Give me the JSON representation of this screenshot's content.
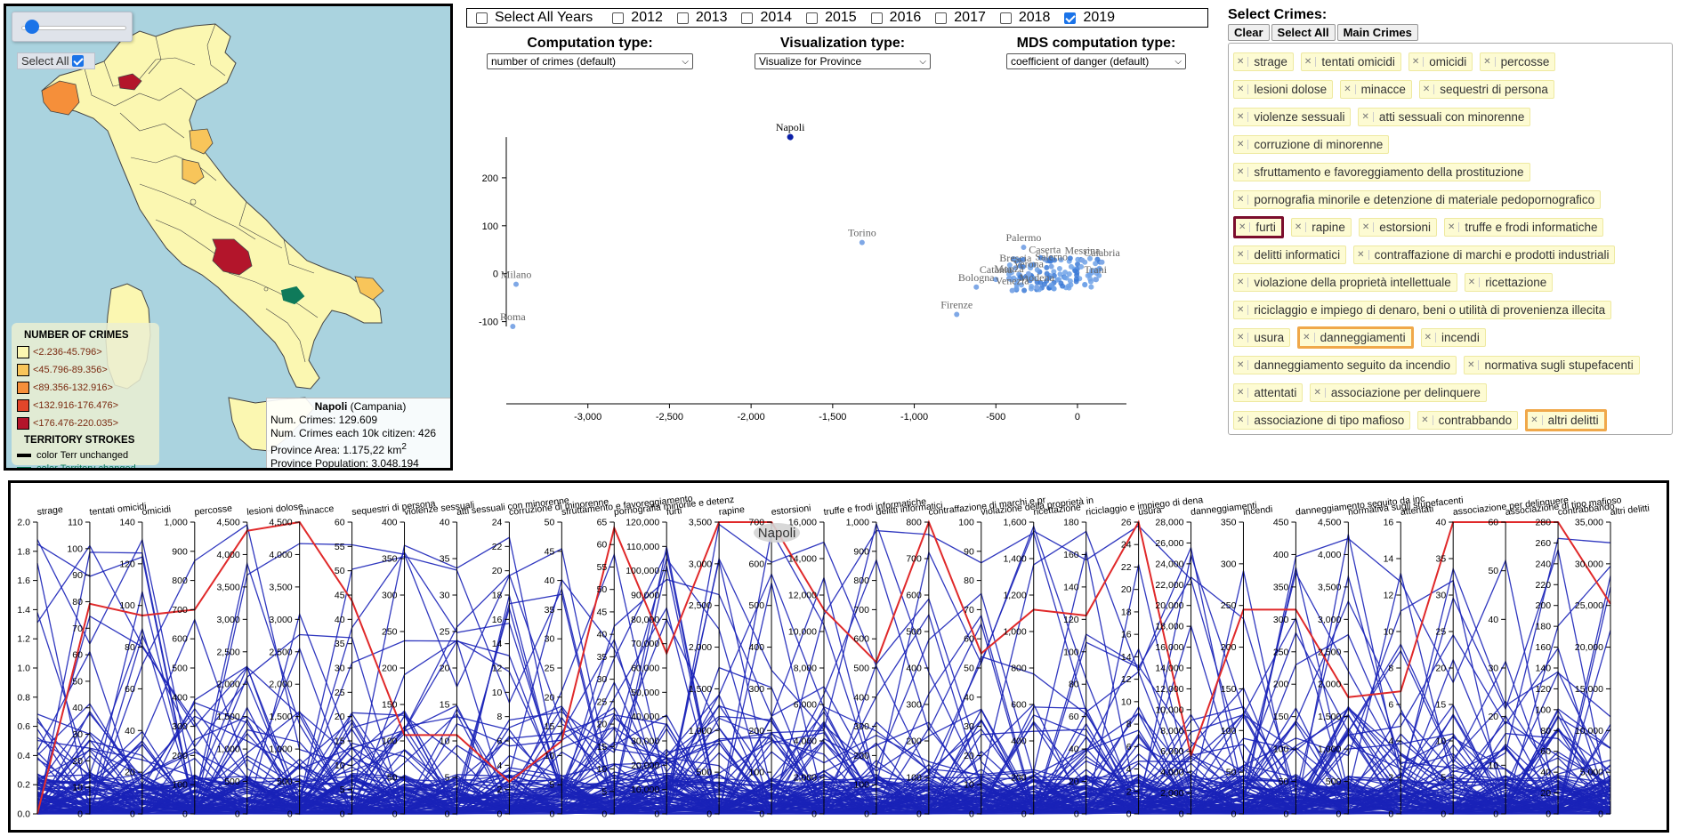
{
  "map": {
    "select_all_label": "Select All",
    "select_all_checked": true,
    "legend": {
      "title": "NUMBER OF CRIMES",
      "ranges": [
        {
          "label": "<2.236-45.796>",
          "color": "#fbf7b1"
        },
        {
          "label": "<45.796-89.356>",
          "color": "#f8c55a"
        },
        {
          "label": "<89.356-132.916>",
          "color": "#f58f3a"
        },
        {
          "label": "<132.916-176.476>",
          "color": "#e2462a"
        },
        {
          "label": "<176.476-220.035>",
          "color": "#b3152b"
        }
      ],
      "strokes_title": "TERRITORY STROKES",
      "strokes": [
        {
          "label": "color Terr unchanged",
          "color": "#000000"
        },
        {
          "label": "color Territory changed",
          "color": "#0f7a5a"
        }
      ]
    },
    "infobox": {
      "name": "Napoli",
      "region": "(Campania)",
      "num_crimes": "Num. Crimes: 129.609",
      "per_10k": "Num. Crimes each 10k citizen: 426",
      "area": "Province Area: 1.175,22 km",
      "area_sup": "2",
      "population": "Province Population: 3.048.194"
    }
  },
  "years": {
    "select_all_label": "Select All Years",
    "items": [
      {
        "label": "2012",
        "checked": false
      },
      {
        "label": "2013",
        "checked": false
      },
      {
        "label": "2014",
        "checked": false
      },
      {
        "label": "2015",
        "checked": false
      },
      {
        "label": "2016",
        "checked": false
      },
      {
        "label": "2017",
        "checked": false
      },
      {
        "label": "2018",
        "checked": false
      },
      {
        "label": "2019",
        "checked": true
      }
    ]
  },
  "dropdowns": {
    "computation": {
      "title": "Computation type:",
      "value": "number of crimes (default)"
    },
    "visualization": {
      "title": "Visualization type:",
      "value": "Visualize for Province"
    },
    "mds": {
      "title": "MDS computation type:",
      "value": "coefficient of danger (default)"
    }
  },
  "mds_chart": {
    "x_ticks": [
      "-3,000",
      "-2,500",
      "-2,000",
      "-1,500",
      "-1,000",
      "-500",
      "0"
    ],
    "y_ticks": [
      "200",
      "100",
      "0",
      "-100"
    ],
    "labeled_points": [
      {
        "name": "Napoli",
        "x": -1760,
        "y": 285,
        "highlight": true
      },
      {
        "name": "Torino",
        "x": -1320,
        "y": 65
      },
      {
        "name": "Milano",
        "x": -3440,
        "y": -22
      },
      {
        "name": "Roma",
        "x": -3460,
        "y": -110
      },
      {
        "name": "Firenze",
        "x": -740,
        "y": -85
      },
      {
        "name": "Palermo",
        "x": -330,
        "y": 55
      },
      {
        "name": "Bologna",
        "x": -620,
        "y": -28
      },
      {
        "name": "Brescia",
        "x": -380,
        "y": 12
      },
      {
        "name": "Caserta",
        "x": -200,
        "y": 30
      },
      {
        "name": "Messina",
        "x": 30,
        "y": 28
      },
      {
        "name": "Calabria",
        "x": 150,
        "y": 24
      },
      {
        "name": "Salerno",
        "x": -160,
        "y": 15
      },
      {
        "name": "Monza",
        "x": -420,
        "y": -10
      },
      {
        "name": "Catania",
        "x": -500,
        "y": -12
      },
      {
        "name": "Venezia",
        "x": -400,
        "y": -35
      },
      {
        "name": "Modena",
        "x": -250,
        "y": -28
      },
      {
        "name": "Verona",
        "x": -300,
        "y": 0
      },
      {
        "name": "Trani",
        "x": 110,
        "y": -12
      }
    ]
  },
  "crimes": {
    "title": "Select Crimes:",
    "buttons": [
      "Clear",
      "Select All",
      "Main Crimes"
    ],
    "rows": [
      [
        {
          "label": "strage"
        },
        {
          "label": "tentati omicidi"
        },
        {
          "label": "omicidi"
        },
        {
          "label": "percosse"
        }
      ],
      [
        {
          "label": "lesioni dolose"
        },
        {
          "label": "minacce"
        },
        {
          "label": "sequestri di persona"
        }
      ],
      [
        {
          "label": "violenze sessuali"
        },
        {
          "label": "atti sessuali con minorenne"
        }
      ],
      [
        {
          "label": "corruzione di minorenne"
        }
      ],
      [
        {
          "label": "sfruttamento e favoreggiamento della prostituzione"
        }
      ],
      [
        {
          "label": "pornografia minorile e detenzione di materiale pedopornografico"
        }
      ],
      [
        {
          "label": "furti",
          "style": "dark"
        },
        {
          "label": "rapine"
        },
        {
          "label": "estorsioni"
        },
        {
          "label": "truffe e frodi informatiche"
        }
      ],
      [
        {
          "label": "delitti informatici"
        },
        {
          "label": "contraffazione di marchi e prodotti industriali"
        }
      ],
      [
        {
          "label": "violazione della proprietà intellettuale"
        },
        {
          "label": "ricettazione"
        }
      ],
      [
        {
          "label": "riciclaggio e impiego di denaro, beni o utilità di provenienza illecita"
        }
      ],
      [
        {
          "label": "usura"
        },
        {
          "label": "danneggiamenti",
          "style": "orange"
        },
        {
          "label": "incendi"
        }
      ],
      [
        {
          "label": "danneggiamento seguito da incendio"
        },
        {
          "label": "normativa sugli stupefacenti"
        }
      ],
      [
        {
          "label": "attentati"
        },
        {
          "label": "associazione per delinquere"
        }
      ],
      [
        {
          "label": "associazione di tipo mafioso"
        },
        {
          "label": "contrabbando"
        },
        {
          "label": "altri delitti",
          "style": "orange"
        }
      ]
    ]
  },
  "parallel": {
    "hover_label": "Napoli",
    "axes": [
      {
        "name": "strage",
        "ticks": [
          "2.0",
          "1.8",
          "1.6",
          "1.4",
          "1.2",
          "1.0",
          "0.8",
          "0.6",
          "0.4",
          "0.2",
          "0.0"
        ]
      },
      {
        "name": "tentati omicidi",
        "ticks": [
          "110",
          "100",
          "90",
          "80",
          "70",
          "60",
          "50",
          "40",
          "30",
          "20",
          "10",
          "0"
        ]
      },
      {
        "name": "omicidi",
        "ticks": [
          "140",
          "120",
          "100",
          "80",
          "60",
          "40",
          "20",
          "0"
        ]
      },
      {
        "name": "percosse",
        "ticks": [
          "1,000",
          "900",
          "800",
          "700",
          "600",
          "500",
          "400",
          "300",
          "200",
          "100",
          "0"
        ]
      },
      {
        "name": "lesioni dolose",
        "ticks": [
          "4,500",
          "4,000",
          "3,500",
          "3,000",
          "2,500",
          "2,000",
          "1,500",
          "1,000",
          "500",
          "0"
        ]
      },
      {
        "name": "minacce",
        "ticks": [
          "4,500",
          "4,000",
          "3,500",
          "3,000",
          "2,500",
          "2,000",
          "1,500",
          "1,000",
          "500",
          "0"
        ]
      },
      {
        "name": "sequestri di persona",
        "ticks": [
          "60",
          "55",
          "50",
          "45",
          "40",
          "35",
          "30",
          "25",
          "20",
          "15",
          "10",
          "5",
          "0"
        ]
      },
      {
        "name": "violenze sessuali",
        "ticks": [
          "400",
          "350",
          "300",
          "250",
          "200",
          "150",
          "100",
          "50",
          "0"
        ]
      },
      {
        "name": "atti sessuali con minorenne",
        "ticks": [
          "40",
          "35",
          "30",
          "25",
          "20",
          "15",
          "10",
          "5",
          "0"
        ]
      },
      {
        "name": "corruzione di minorenne",
        "ticks": [
          "24",
          "22",
          "20",
          "18",
          "16",
          "14",
          "12",
          "10",
          "8",
          "6",
          "4",
          "2",
          "0"
        ]
      },
      {
        "name": "sfruttamento e favoreggiamento",
        "ticks": [
          "50",
          "45",
          "40",
          "35",
          "30",
          "25",
          "20",
          "15",
          "10",
          "5",
          "0"
        ]
      },
      {
        "name": "pornografia minorile e detenz",
        "ticks": [
          "65",
          "60",
          "55",
          "50",
          "45",
          "40",
          "35",
          "30",
          "25",
          "20",
          "15",
          "10",
          "5",
          "0"
        ]
      },
      {
        "name": "furti",
        "ticks": [
          "120,000",
          "110,000",
          "100,000",
          "90,000",
          "80,000",
          "70,000",
          "60,000",
          "50,000",
          "40,000",
          "30,000",
          "20,000",
          "10,000",
          "0"
        ]
      },
      {
        "name": "rapine",
        "ticks": [
          "3,500",
          "3,000",
          "2,500",
          "2,000",
          "1,500",
          "1,000",
          "500",
          "0"
        ]
      },
      {
        "name": "estorsioni",
        "ticks": [
          "700",
          "600",
          "500",
          "400",
          "300",
          "200",
          "100",
          "0"
        ]
      },
      {
        "name": "truffe e frodi informatiche",
        "ticks": [
          "16,000",
          "14,000",
          "12,000",
          "10,000",
          "8,000",
          "6,000",
          "4,000",
          "2,000",
          "0"
        ]
      },
      {
        "name": "delitti informatici",
        "ticks": [
          "1,000",
          "900",
          "800",
          "700",
          "600",
          "500",
          "400",
          "300",
          "200",
          "100",
          "0"
        ]
      },
      {
        "name": "contraffazione di marchi e pr",
        "ticks": [
          "800",
          "700",
          "600",
          "500",
          "400",
          "300",
          "200",
          "100",
          "0"
        ]
      },
      {
        "name": "violazione della proprietà in",
        "ticks": [
          "100",
          "90",
          "80",
          "70",
          "60",
          "50",
          "40",
          "30",
          "20",
          "10",
          "0"
        ]
      },
      {
        "name": "ricettazione",
        "ticks": [
          "1,600",
          "1,400",
          "1,200",
          "1,000",
          "800",
          "600",
          "400",
          "200",
          "0"
        ]
      },
      {
        "name": "riciclaggio e impiego di dena",
        "ticks": [
          "180",
          "160",
          "140",
          "120",
          "100",
          "80",
          "60",
          "40",
          "20",
          "0"
        ]
      },
      {
        "name": "usura",
        "ticks": [
          "26",
          "24",
          "22",
          "20",
          "18",
          "16",
          "14",
          "12",
          "10",
          "8",
          "6",
          "4",
          "2",
          "0"
        ]
      },
      {
        "name": "danneggiamenti",
        "ticks": [
          "28,000",
          "26,000",
          "24,000",
          "22,000",
          "20,000",
          "18,000",
          "16,000",
          "14,000",
          "12,000",
          "10,000",
          "8,000",
          "6,000",
          "4,000",
          "2,000",
          "0"
        ]
      },
      {
        "name": "incendi",
        "ticks": [
          "350",
          "300",
          "250",
          "200",
          "150",
          "100",
          "50",
          "0"
        ]
      },
      {
        "name": "danneggiamento seguito da inc",
        "ticks": [
          "450",
          "400",
          "350",
          "300",
          "250",
          "200",
          "150",
          "100",
          "50",
          "0"
        ]
      },
      {
        "name": "normativa sugli stupefacenti",
        "ticks": [
          "4,500",
          "4,000",
          "3,500",
          "3,000",
          "2,500",
          "2,000",
          "1,500",
          "1,000",
          "500",
          "0"
        ]
      },
      {
        "name": "attentati",
        "ticks": [
          "16",
          "14",
          "12",
          "10",
          "8",
          "6",
          "4",
          "2",
          "0"
        ]
      },
      {
        "name": "associazione per delinquere",
        "ticks": [
          "40",
          "35",
          "30",
          "25",
          "20",
          "15",
          "10",
          "5",
          "0"
        ]
      },
      {
        "name": "associazione di tipo mafioso",
        "ticks": [
          "60",
          "50",
          "40",
          "30",
          "20",
          "10",
          "0"
        ]
      },
      {
        "name": "contrabbando",
        "ticks": [
          "280",
          "260",
          "240",
          "220",
          "200",
          "180",
          "160",
          "140",
          "120",
          "100",
          "80",
          "60",
          "40",
          "20",
          "0"
        ]
      },
      {
        "name": "altri delitti",
        "ticks": [
          "35,000",
          "30,000",
          "25,000",
          "20,000",
          "15,000",
          "10,000",
          "5,000",
          "0"
        ]
      }
    ],
    "napoli_profile": [
      0.0,
      0.72,
      0.68,
      0.7,
      0.97,
      1.0,
      0.73,
      0.27,
      0.27,
      0.11,
      0.25,
      0.98,
      0.55,
      1.0,
      1.0,
      0.7,
      0.52,
      1.0,
      0.55,
      0.7,
      0.68,
      1.0,
      0.2,
      0.7,
      0.7,
      0.4,
      0.42,
      1.0,
      1.0,
      1.0,
      0.72
    ]
  }
}
